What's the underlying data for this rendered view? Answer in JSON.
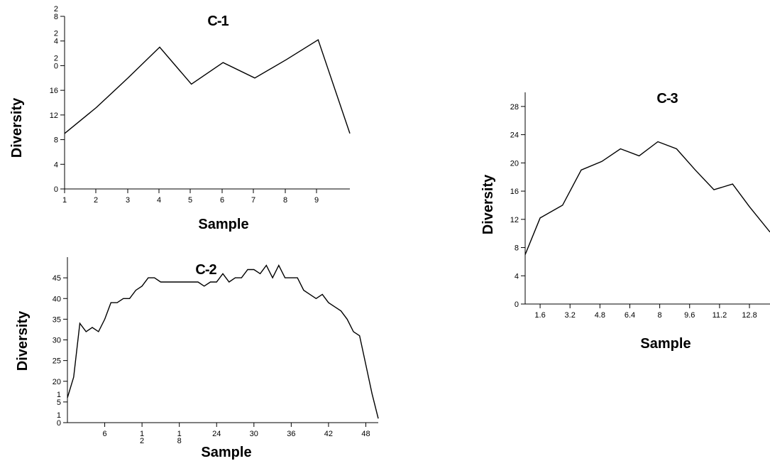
{
  "chart_data": [
    {
      "id": "c1",
      "type": "line",
      "title": "C-1",
      "xlabel": "Sample",
      "ylabel": "Diversity",
      "xlim": [
        1,
        10
      ],
      "ylim": [
        0,
        28
      ],
      "x_ticks": [
        "1",
        "2",
        "3",
        "4",
        "5",
        "6",
        "7",
        "8",
        "9"
      ],
      "y_ticks": [
        {
          "value": 0,
          "label": "0"
        },
        {
          "value": 4,
          "label": "4"
        },
        {
          "value": 8,
          "label": "8"
        },
        {
          "value": 12,
          "label": "12"
        },
        {
          "value": 16,
          "label": "16"
        },
        {
          "value": 20,
          "label": "2\n0"
        },
        {
          "value": 24,
          "label": "2\n4"
        },
        {
          "value": 28,
          "label": "2\n8"
        }
      ],
      "series": [
        {
          "x": [
            1,
            2,
            3,
            4,
            5,
            6,
            7,
            8,
            9,
            10
          ],
          "y": [
            9,
            13.2,
            18,
            23,
            17,
            20.5,
            18,
            21,
            24.2,
            9
          ]
        }
      ]
    },
    {
      "id": "c2",
      "type": "line",
      "title": "C-2",
      "xlabel": "Sample",
      "ylabel": "Diversity",
      "xlim": [
        0,
        50
      ],
      "ylim": [
        10,
        50
      ],
      "x_ticks": [
        {
          "value": 6,
          "label": "6"
        },
        {
          "value": 12,
          "label": "1\n2"
        },
        {
          "value": 18,
          "label": "1\n8"
        },
        {
          "value": 24,
          "label": "24"
        },
        {
          "value": 30,
          "label": "30"
        },
        {
          "value": 36,
          "label": "36"
        },
        {
          "value": 42,
          "label": "42"
        },
        {
          "value": 48,
          "label": "48"
        }
      ],
      "y_ticks": [
        {
          "value": 10,
          "label": "1\n0"
        },
        {
          "value": 15,
          "label": "1\n5"
        },
        {
          "value": 20,
          "label": "20"
        },
        {
          "value": 25,
          "label": "25"
        },
        {
          "value": 30,
          "label": "30"
        },
        {
          "value": 35,
          "label": "35"
        },
        {
          "value": 40,
          "label": "40"
        },
        {
          "value": 45,
          "label": "45"
        }
      ],
      "series": [
        {
          "x": [
            0,
            1,
            2,
            3,
            4,
            5,
            6,
            7,
            8,
            9,
            10,
            11,
            12,
            13,
            14,
            15,
            16,
            17,
            18,
            19,
            20,
            21,
            22,
            23,
            24,
            25,
            26,
            27,
            28,
            29,
            30,
            31,
            32,
            33,
            34,
            35,
            36,
            37,
            38,
            39,
            40,
            41,
            42,
            43,
            44,
            45,
            46,
            47,
            48,
            49,
            50
          ],
          "y": [
            16,
            21,
            34,
            32,
            33,
            32,
            35,
            39,
            39,
            40,
            40,
            42,
            43,
            45,
            45,
            44,
            44,
            44,
            44,
            44,
            44,
            44,
            43,
            44,
            44,
            46,
            44,
            45,
            45,
            47,
            47,
            46,
            48,
            45,
            48,
            45,
            45,
            45,
            42,
            41,
            40,
            41,
            39,
            38,
            37,
            35,
            32,
            31,
            24,
            17,
            11
          ]
        }
      ]
    },
    {
      "id": "c3",
      "type": "line",
      "title": "C-3",
      "xlabel": "Sample",
      "ylabel": "Diversity",
      "xlim": [
        0.8,
        13.9
      ],
      "ylim": [
        0,
        30
      ],
      "x_ticks": [
        "1.6",
        "3.2",
        "4.8",
        "6.4",
        "8",
        "9.6",
        "11.2",
        "12.8"
      ],
      "y_ticks": [
        {
          "value": 0,
          "label": "0"
        },
        {
          "value": 4,
          "label": "4"
        },
        {
          "value": 8,
          "label": "8"
        },
        {
          "value": 12,
          "label": "12"
        },
        {
          "value": 16,
          "label": "16"
        },
        {
          "value": 20,
          "label": "20"
        },
        {
          "value": 24,
          "label": "24"
        },
        {
          "value": 28,
          "label": "28"
        }
      ],
      "series": [
        {
          "x": [
            0.8,
            1.6,
            2.8,
            3.8,
            4.9,
            5.9,
            6.9,
            7.9,
            8.9,
            9.9,
            10.9,
            11.9,
            12.8,
            13.9
          ],
          "y": [
            7,
            12.2,
            14,
            19,
            20.2,
            22,
            21,
            23,
            22,
            19,
            16.2,
            17,
            13.8,
            10.2
          ]
        }
      ]
    }
  ]
}
